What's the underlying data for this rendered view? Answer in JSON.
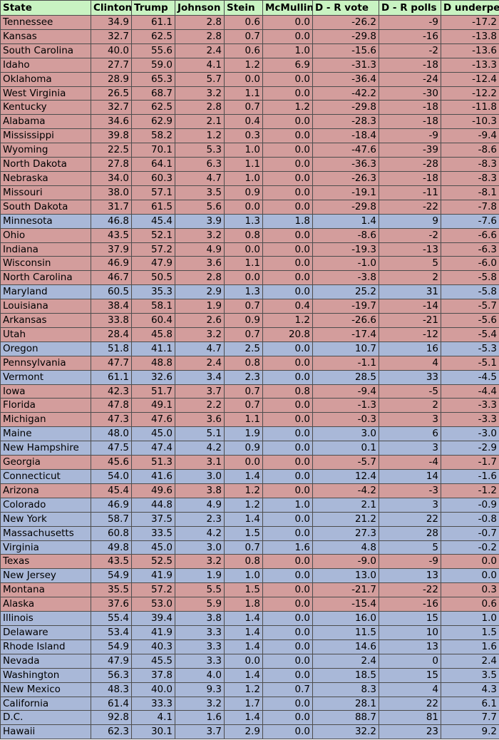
{
  "table": {
    "columns": [
      "State",
      "Clinton",
      "Trump",
      "Johnson",
      "Stein",
      "McMullin",
      "D - R vote",
      "D - R polls",
      "D underperf"
    ],
    "rows": [
      {
        "party": "rep",
        "cells": [
          "Tennessee",
          "34.9",
          "61.1",
          "2.8",
          "0.6",
          "0.0",
          "-26.2",
          "-9",
          "-17.2"
        ]
      },
      {
        "party": "rep",
        "cells": [
          "Kansas",
          "32.7",
          "62.5",
          "2.8",
          "0.7",
          "0.0",
          "-29.8",
          "-16",
          "-13.8"
        ]
      },
      {
        "party": "rep",
        "cells": [
          "South Carolina",
          "40.0",
          "55.6",
          "2.4",
          "0.6",
          "1.0",
          "-15.6",
          "-2",
          "-13.6"
        ]
      },
      {
        "party": "rep",
        "cells": [
          "Idaho",
          "27.7",
          "59.0",
          "4.1",
          "1.2",
          "6.9",
          "-31.3",
          "-18",
          "-13.3"
        ]
      },
      {
        "party": "rep",
        "cells": [
          "Oklahoma",
          "28.9",
          "65.3",
          "5.7",
          "0.0",
          "0.0",
          "-36.4",
          "-24",
          "-12.4"
        ]
      },
      {
        "party": "rep",
        "cells": [
          "West Virginia",
          "26.5",
          "68.7",
          "3.2",
          "1.1",
          "0.0",
          "-42.2",
          "-30",
          "-12.2"
        ]
      },
      {
        "party": "rep",
        "cells": [
          "Kentucky",
          "32.7",
          "62.5",
          "2.8",
          "0.7",
          "1.2",
          "-29.8",
          "-18",
          "-11.8"
        ]
      },
      {
        "party": "rep",
        "cells": [
          "Alabama",
          "34.6",
          "62.9",
          "2.1",
          "0.4",
          "0.0",
          "-28.3",
          "-18",
          "-10.3"
        ]
      },
      {
        "party": "rep",
        "cells": [
          "Mississippi",
          "39.8",
          "58.2",
          "1.2",
          "0.3",
          "0.0",
          "-18.4",
          "-9",
          "-9.4"
        ]
      },
      {
        "party": "rep",
        "cells": [
          "Wyoming",
          "22.5",
          "70.1",
          "5.3",
          "1.0",
          "0.0",
          "-47.6",
          "-39",
          "-8.6"
        ]
      },
      {
        "party": "rep",
        "cells": [
          "North Dakota",
          "27.8",
          "64.1",
          "6.3",
          "1.1",
          "0.0",
          "-36.3",
          "-28",
          "-8.3"
        ]
      },
      {
        "party": "rep",
        "cells": [
          "Nebraska",
          "34.0",
          "60.3",
          "4.7",
          "1.0",
          "0.0",
          "-26.3",
          "-18",
          "-8.3"
        ]
      },
      {
        "party": "rep",
        "cells": [
          "Missouri",
          "38.0",
          "57.1",
          "3.5",
          "0.9",
          "0.0",
          "-19.1",
          "-11",
          "-8.1"
        ]
      },
      {
        "party": "rep",
        "cells": [
          "South Dakota",
          "31.7",
          "61.5",
          "5.6",
          "0.0",
          "0.0",
          "-29.8",
          "-22",
          "-7.8"
        ]
      },
      {
        "party": "dem",
        "cells": [
          "Minnesota",
          "46.8",
          "45.4",
          "3.9",
          "1.3",
          "1.8",
          "1.4",
          "9",
          "-7.6"
        ]
      },
      {
        "party": "rep",
        "cells": [
          "Ohio",
          "43.5",
          "52.1",
          "3.2",
          "0.8",
          "0.0",
          "-8.6",
          "-2",
          "-6.6"
        ]
      },
      {
        "party": "rep",
        "cells": [
          "Indiana",
          "37.9",
          "57.2",
          "4.9",
          "0.0",
          "0.0",
          "-19.3",
          "-13",
          "-6.3"
        ]
      },
      {
        "party": "rep",
        "cells": [
          "Wisconsin",
          "46.9",
          "47.9",
          "3.6",
          "1.1",
          "0.0",
          "-1.0",
          "5",
          "-6.0"
        ]
      },
      {
        "party": "rep",
        "cells": [
          "North Carolina",
          "46.7",
          "50.5",
          "2.8",
          "0.0",
          "0.0",
          "-3.8",
          "2",
          "-5.8"
        ]
      },
      {
        "party": "dem",
        "cells": [
          "Maryland",
          "60.5",
          "35.3",
          "2.9",
          "1.3",
          "0.0",
          "25.2",
          "31",
          "-5.8"
        ]
      },
      {
        "party": "rep",
        "cells": [
          "Louisiana",
          "38.4",
          "58.1",
          "1.9",
          "0.7",
          "0.4",
          "-19.7",
          "-14",
          "-5.7"
        ]
      },
      {
        "party": "rep",
        "cells": [
          "Arkansas",
          "33.8",
          "60.4",
          "2.6",
          "0.9",
          "1.2",
          "-26.6",
          "-21",
          "-5.6"
        ]
      },
      {
        "party": "rep",
        "cells": [
          "Utah",
          "28.4",
          "45.8",
          "3.2",
          "0.7",
          "20.8",
          "-17.4",
          "-12",
          "-5.4"
        ]
      },
      {
        "party": "dem",
        "cells": [
          "Oregon",
          "51.8",
          "41.1",
          "4.7",
          "2.5",
          "0.0",
          "10.7",
          "16",
          "-5.3"
        ]
      },
      {
        "party": "rep",
        "cells": [
          "Pennsylvania",
          "47.7",
          "48.8",
          "2.4",
          "0.8",
          "0.0",
          "-1.1",
          "4",
          "-5.1"
        ]
      },
      {
        "party": "dem",
        "cells": [
          "Vermont",
          "61.1",
          "32.6",
          "3.4",
          "2.3",
          "0.0",
          "28.5",
          "33",
          "-4.5"
        ]
      },
      {
        "party": "rep",
        "cells": [
          "Iowa",
          "42.3",
          "51.7",
          "3.7",
          "0.7",
          "0.8",
          "-9.4",
          "-5",
          "-4.4"
        ]
      },
      {
        "party": "rep",
        "cells": [
          "Florida",
          "47.8",
          "49.1",
          "2.2",
          "0.7",
          "0.0",
          "-1.3",
          "2",
          "-3.3"
        ]
      },
      {
        "party": "rep",
        "cells": [
          "Michigan",
          "47.3",
          "47.6",
          "3.6",
          "1.1",
          "0.0",
          "-0.3",
          "3",
          "-3.3"
        ]
      },
      {
        "party": "dem",
        "cells": [
          "Maine",
          "48.0",
          "45.0",
          "5.1",
          "1.9",
          "0.0",
          "3.0",
          "6",
          "-3.0"
        ]
      },
      {
        "party": "dem",
        "cells": [
          "New Hampshire",
          "47.5",
          "47.4",
          "4.2",
          "0.9",
          "0.0",
          "0.1",
          "3",
          "-2.9"
        ]
      },
      {
        "party": "rep",
        "cells": [
          "Georgia",
          "45.6",
          "51.3",
          "3.1",
          "0.0",
          "0.0",
          "-5.7",
          "-4",
          "-1.7"
        ]
      },
      {
        "party": "dem",
        "cells": [
          "Connecticut",
          "54.0",
          "41.6",
          "3.0",
          "1.4",
          "0.0",
          "12.4",
          "14",
          "-1.6"
        ]
      },
      {
        "party": "rep",
        "cells": [
          "Arizona",
          "45.4",
          "49.6",
          "3.8",
          "1.2",
          "0.0",
          "-4.2",
          "-3",
          "-1.2"
        ]
      },
      {
        "party": "dem",
        "cells": [
          "Colorado",
          "46.9",
          "44.8",
          "4.9",
          "1.2",
          "1.0",
          "2.1",
          "3",
          "-0.9"
        ]
      },
      {
        "party": "dem",
        "cells": [
          "New York",
          "58.7",
          "37.5",
          "2.3",
          "1.4",
          "0.0",
          "21.2",
          "22",
          "-0.8"
        ]
      },
      {
        "party": "dem",
        "cells": [
          "Massachusetts",
          "60.8",
          "33.5",
          "4.2",
          "1.5",
          "0.0",
          "27.3",
          "28",
          "-0.7"
        ]
      },
      {
        "party": "dem",
        "cells": [
          "Virginia",
          "49.8",
          "45.0",
          "3.0",
          "0.7",
          "1.6",
          "4.8",
          "5",
          "-0.2"
        ]
      },
      {
        "party": "rep",
        "cells": [
          "Texas",
          "43.5",
          "52.5",
          "3.2",
          "0.8",
          "0.0",
          "-9.0",
          "-9",
          "0.0"
        ]
      },
      {
        "party": "dem",
        "cells": [
          "New Jersey",
          "54.9",
          "41.9",
          "1.9",
          "1.0",
          "0.0",
          "13.0",
          "13",
          "0.0"
        ]
      },
      {
        "party": "rep",
        "cells": [
          "Montana",
          "35.5",
          "57.2",
          "5.5",
          "1.5",
          "0.0",
          "-21.7",
          "-22",
          "0.3"
        ]
      },
      {
        "party": "rep",
        "cells": [
          "Alaska",
          "37.6",
          "53.0",
          "5.9",
          "1.8",
          "0.0",
          "-15.4",
          "-16",
          "0.6"
        ]
      },
      {
        "party": "dem",
        "cells": [
          "Illinois",
          "55.4",
          "39.4",
          "3.8",
          "1.4",
          "0.0",
          "16.0",
          "15",
          "1.0"
        ]
      },
      {
        "party": "dem",
        "cells": [
          "Delaware",
          "53.4",
          "41.9",
          "3.3",
          "1.4",
          "0.0",
          "11.5",
          "10",
          "1.5"
        ]
      },
      {
        "party": "dem",
        "cells": [
          "Rhode Island",
          "54.9",
          "40.3",
          "3.3",
          "1.4",
          "0.0",
          "14.6",
          "13",
          "1.6"
        ]
      },
      {
        "party": "dem",
        "cells": [
          "Nevada",
          "47.9",
          "45.5",
          "3.3",
          "0.0",
          "0.0",
          "2.4",
          "0",
          "2.4"
        ]
      },
      {
        "party": "dem",
        "cells": [
          "Washington",
          "56.3",
          "37.8",
          "4.0",
          "1.4",
          "0.0",
          "18.5",
          "15",
          "3.5"
        ]
      },
      {
        "party": "dem",
        "cells": [
          "New Mexico",
          "48.3",
          "40.0",
          "9.3",
          "1.2",
          "0.7",
          "8.3",
          "4",
          "4.3"
        ]
      },
      {
        "party": "dem",
        "cells": [
          "California",
          "61.4",
          "33.3",
          "3.2",
          "1.7",
          "0.0",
          "28.1",
          "22",
          "6.1"
        ]
      },
      {
        "party": "dem",
        "cells": [
          "D.C.",
          "92.8",
          "4.1",
          "1.6",
          "1.4",
          "0.0",
          "88.7",
          "81",
          "7.7"
        ]
      },
      {
        "party": "dem",
        "cells": [
          "Hawaii",
          "62.3",
          "30.1",
          "3.7",
          "2.9",
          "0.0",
          "32.2",
          "23",
          "9.2"
        ]
      }
    ]
  },
  "colors": {
    "header_bg": "#c9f3c2",
    "republican_row_bg": "#d39d9c",
    "democratic_row_bg": "#a9b8d8",
    "grid_line": "#4d4d4d"
  }
}
